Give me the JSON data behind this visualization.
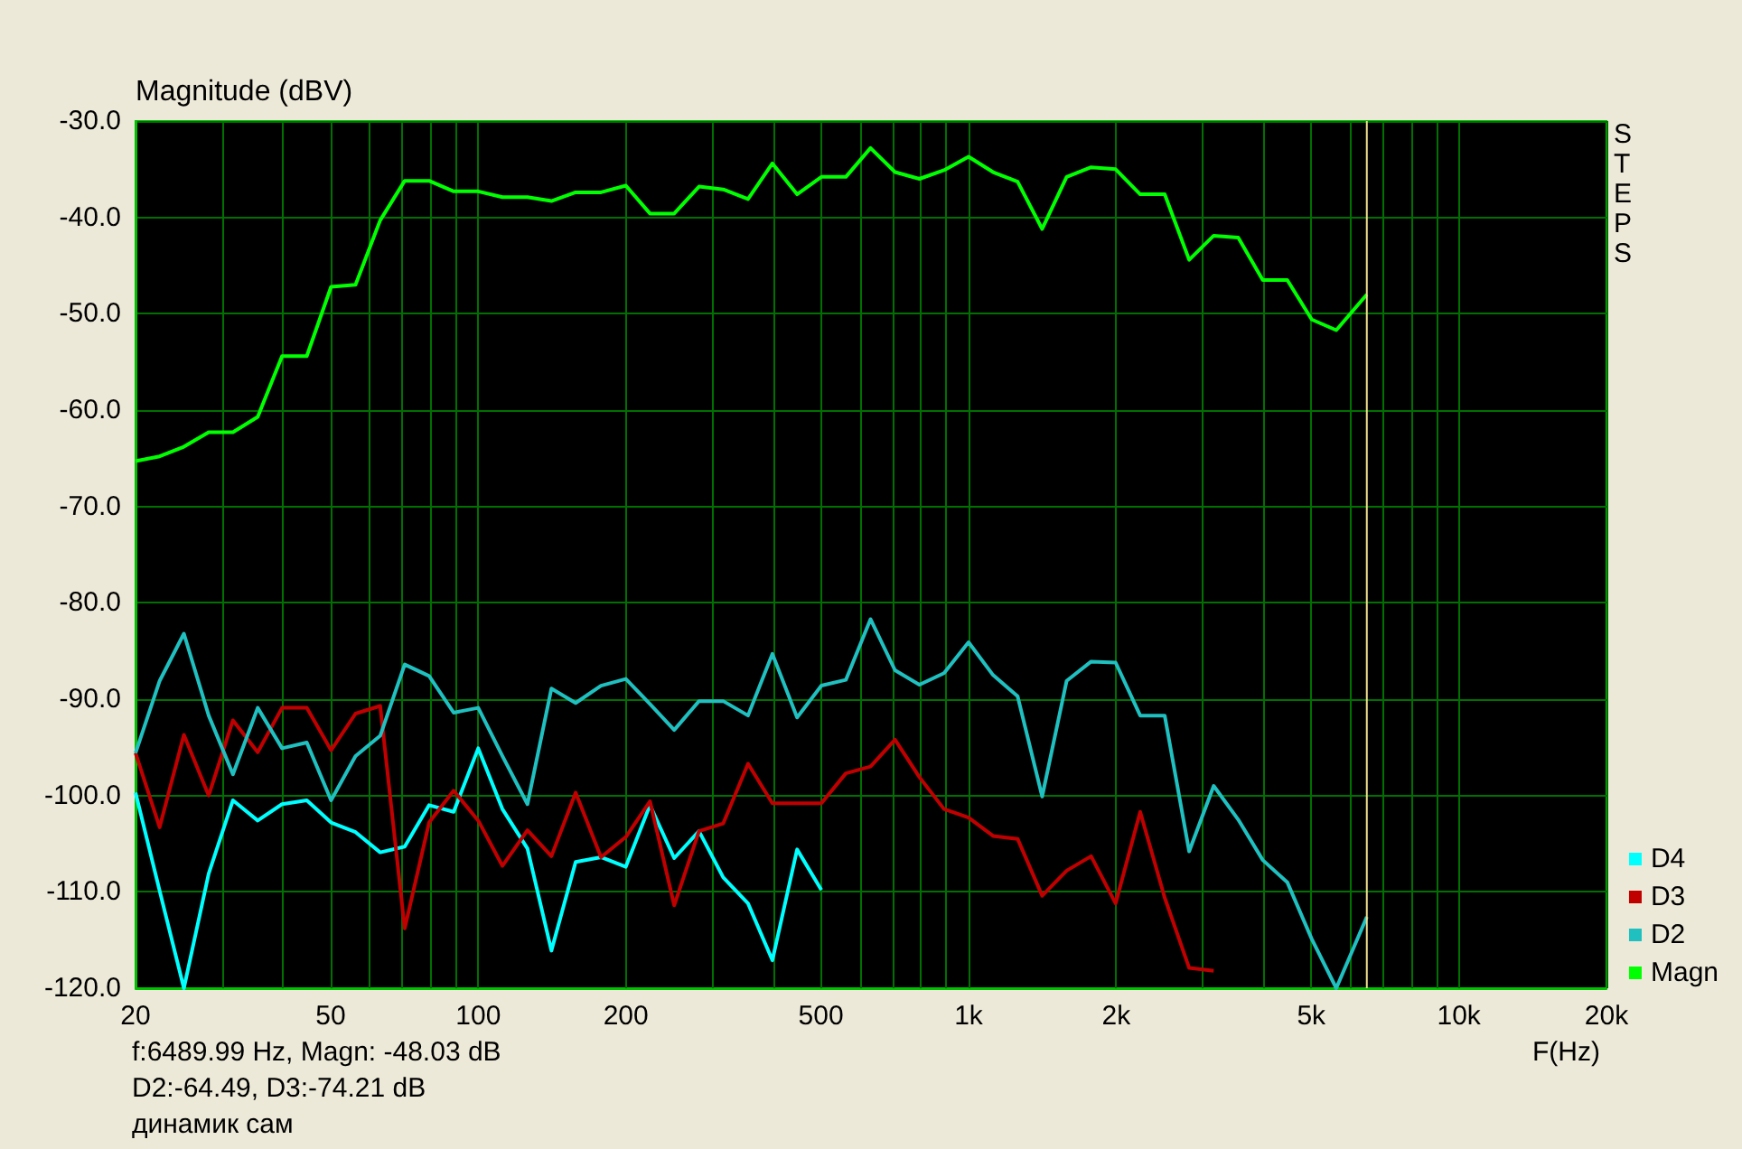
{
  "chart_data": {
    "type": "line",
    "ylabel": "Magnitude (dBV)",
    "xlabel": "F(Hz)",
    "log": "x",
    "grid": true,
    "legend": "right",
    "annotations": [
      "STEPS",
      "f:6489.99 Hz, Magn: -48.03 dB",
      "D2:-64.49, D3:-74.21 dB",
      "динамик сам"
    ],
    "xlim": [
      20,
      20000
    ],
    "xticks": [
      20,
      {
        "value": 30,
        "label": null
      },
      {
        "value": 40,
        "label": null
      },
      50,
      {
        "value": 60,
        "label": null
      },
      {
        "value": 70,
        "label": null
      },
      {
        "value": 80,
        "label": null
      },
      {
        "value": 90,
        "label": null
      },
      100,
      200,
      {
        "value": 300,
        "label": null
      },
      {
        "value": 400,
        "label": null
      },
      500,
      {
        "value": 600,
        "label": null
      },
      {
        "value": 700,
        "label": null
      },
      {
        "value": 800,
        "label": null
      },
      {
        "value": 900,
        "label": null
      },
      {
        "value": 1000,
        "label": "1k"
      },
      {
        "value": 2000,
        "label": "2k"
      },
      {
        "value": 3000,
        "label": null
      },
      {
        "value": 4000,
        "label": null
      },
      {
        "value": 5000,
        "label": "5k"
      },
      {
        "value": 6000,
        "label": null
      },
      {
        "value": 7000,
        "label": null
      },
      {
        "value": 8000,
        "label": null
      },
      {
        "value": 9000,
        "label": null
      },
      {
        "value": 10000,
        "label": "10k"
      },
      {
        "value": 20000,
        "label": "20k"
      }
    ],
    "ylim": [
      -120,
      -30
    ],
    "yticks": [
      {
        "value": -120,
        "label": "-120.0"
      },
      {
        "value": -110,
        "label": "-110.0"
      },
      {
        "value": -100,
        "label": "-100.0"
      },
      {
        "value": -90,
        "label": "-90.0"
      },
      {
        "value": -80,
        "label": "-80.0"
      },
      {
        "value": -70,
        "label": "-70.0"
      },
      {
        "value": -60,
        "label": "-60.0"
      },
      {
        "value": -50,
        "label": "-50.0"
      },
      {
        "value": -40,
        "label": "-40.0"
      },
      {
        "value": -30,
        "label": "-30.0"
      }
    ],
    "ref_lines": [
      {
        "axis": "x",
        "value": 6489.99,
        "label": null,
        "color": "#f0e090"
      }
    ],
    "x": [
      20,
      22.4,
      25.1,
      28.2,
      31.6,
      35.5,
      39.8,
      44.7,
      50.1,
      56.2,
      63.1,
      70.8,
      79.4,
      89.1,
      100,
      112,
      126,
      141,
      158,
      178,
      200,
      224,
      251,
      282,
      316,
      355,
      398,
      447,
      501,
      562,
      631,
      708,
      794,
      891,
      1000,
      1122,
      1259,
      1413,
      1585,
      1778,
      1995,
      2239,
      2512,
      2818,
      3162,
      3548,
      3981,
      4467,
      5012,
      5623,
      6490
    ],
    "series": [
      {
        "name": "D4",
        "color": "#00ffff",
        "values": [
          -99.7,
          -109.9,
          -120,
          -108.1,
          -100.5,
          -102.6,
          -100.9,
          -100.5,
          -102.8,
          -103.8,
          -105.9,
          -105.3,
          -101.0,
          -101.7,
          -95.1,
          -101.4,
          -105.5,
          -116.1,
          -106.9,
          -106.4,
          -107.4,
          -101.0,
          -106.5,
          -103.7,
          -108.5,
          -111.2,
          -117.1,
          -105.6,
          -109.8,
          null,
          null,
          null,
          null,
          null,
          null,
          null,
          null,
          null,
          null,
          null,
          null,
          null,
          null,
          null,
          null,
          null,
          null,
          null,
          null,
          null,
          null
        ]
      },
      {
        "name": "D3",
        "color": "#c00000",
        "values": [
          -95.6,
          -103.3,
          -93.7,
          -100.0,
          -92.2,
          -95.5,
          -90.9,
          -90.9,
          -95.3,
          -91.5,
          -90.7,
          -113.8,
          -102.8,
          -99.5,
          -102.6,
          -107.3,
          -103.6,
          -106.3,
          -99.7,
          -106.4,
          -104.3,
          -100.6,
          -111.4,
          -103.7,
          -102.9,
          -96.7,
          -100.8,
          -100.8,
          -100.8,
          -97.7,
          -97.0,
          -94.2,
          -98.1,
          -101.4,
          -102.3,
          -104.2,
          -104.5,
          -110.4,
          -107.8,
          -106.3,
          -111.2,
          -101.7,
          -110.6,
          -117.9,
          -118.2,
          null,
          null,
          null,
          null,
          null,
          null
        ]
      },
      {
        "name": "D2",
        "color": "#20c0c0",
        "values": [
          -95.6,
          -88.1,
          -83.2,
          -91.7,
          -97.8,
          -90.9,
          -95.1,
          -94.5,
          -100.5,
          -95.9,
          -93.8,
          -86.4,
          -87.6,
          -91.4,
          -90.9,
          -95.9,
          -100.9,
          -88.9,
          -90.4,
          -88.6,
          -87.9,
          -90.5,
          -93.2,
          -90.2,
          -90.2,
          -91.7,
          -85.3,
          -91.9,
          -88.6,
          -88.0,
          -81.7,
          -87.0,
          -88.5,
          -87.3,
          -84.1,
          -87.5,
          -89.7,
          -100.1,
          -88.1,
          -86.1,
          -86.2,
          -91.7,
          -91.7,
          -105.8,
          -99.0,
          -102.5,
          -106.7,
          -109.0,
          -114.9,
          -120,
          -112.6
        ]
      },
      {
        "name": "Magn",
        "color": "#00ff00",
        "values": [
          -65.3,
          -64.8,
          -63.8,
          -62.3,
          -62.3,
          -60.7,
          -54.4,
          -54.4,
          -47.2,
          -47.0,
          -40.3,
          -36.2,
          -36.2,
          -37.3,
          -37.3,
          -37.9,
          -37.9,
          -38.3,
          -37.4,
          -37.4,
          -36.7,
          -39.6,
          -39.6,
          -36.8,
          -37.1,
          -38.1,
          -34.4,
          -37.6,
          -35.8,
          -35.8,
          -32.8,
          -35.3,
          -36.0,
          -35.1,
          -33.7,
          -35.3,
          -36.3,
          -41.2,
          -35.8,
          -34.8,
          -35.0,
          -37.6,
          -37.6,
          -44.4,
          -41.9,
          -42.1,
          -46.5,
          -46.5,
          -50.6,
          -51.7,
          -48.0
        ]
      }
    ]
  }
}
